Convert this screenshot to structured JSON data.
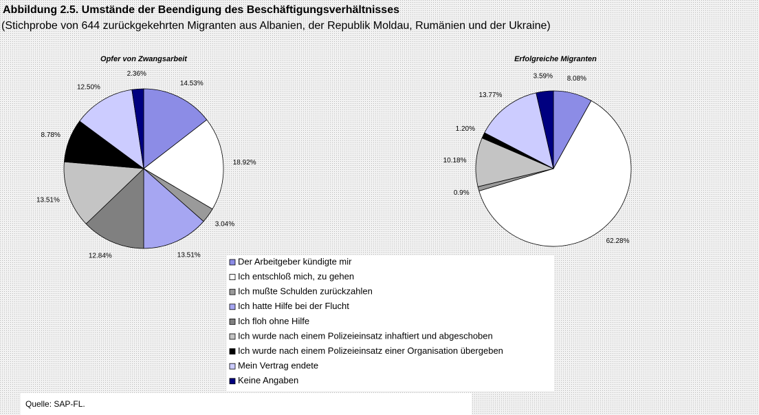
{
  "title": "Abbildung 2.5. Umstände der Beendigung des Beschäftigungsverhältnisses",
  "subtitle": "(Stichprobe von 644 zurückgekehrten Migranten aus Albanien, der Republik Moldau, Rumänien und der Ukraine)",
  "source": "Quelle: SAP-FL.",
  "chart_data": [
    {
      "type": "pie",
      "title": "Opfer von Zwangsarbeit",
      "categories": [
        "Der Arbeitgeber kündigte mir",
        "Ich entschloß mich, zu gehen",
        "Ich mußte Schulden zurückzahlen",
        "Ich hatte Hilfe bei der Flucht",
        "Ich floh ohne Hilfe",
        "Ich wurde nach einem Polizeieinsatz inhaftiert und abgeschoben",
        "Ich wurde nach einem Polizeieinsatz einer Organisation übergeben",
        "Mein Vertrag endete",
        "Keine Angaben"
      ],
      "values": [
        14.53,
        18.92,
        3.04,
        13.51,
        12.84,
        13.51,
        8.78,
        12.5,
        2.36
      ],
      "value_labels": [
        "14.53%",
        "18.92%",
        "3.04%",
        "13.51%",
        "12.84%",
        "13.51%",
        "8.78%",
        "12.50%",
        "2.36%"
      ],
      "colors": [
        "#8c8ce6",
        "#ffffff",
        "#9a9a9a",
        "#a6a6f2",
        "#808080",
        "#c4c4c4",
        "#000000",
        "#ccccff",
        "#000080"
      ],
      "legend": true
    },
    {
      "type": "pie",
      "title": "Erfolgreiche Migranten",
      "categories": [
        "Der Arbeitgeber kündigte mir",
        "Ich entschloß mich, zu gehen",
        "Ich mußte Schulden zurückzahlen",
        "Ich hatte Hilfe bei der Flucht",
        "Ich floh ohne Hilfe",
        "Ich wurde nach einem Polizeieinsatz inhaftiert und abgeschoben",
        "Ich wurde nach einem Polizeieinsatz einer Organisation übergeben",
        "Mein Vertrag endete",
        "Keine Angaben"
      ],
      "values": [
        8.08,
        62.28,
        0.9,
        null,
        null,
        10.18,
        1.2,
        13.77,
        3.59
      ],
      "value_labels": [
        "8.08%",
        "62.28%",
        "0.9%",
        null,
        null,
        "10.18%",
        "1.20%",
        "13.77%",
        "3.59%"
      ],
      "colors": [
        "#8c8ce6",
        "#ffffff",
        "#9a9a9a",
        "#a6a6f2",
        "#808080",
        "#c4c4c4",
        "#000000",
        "#ccccff",
        "#000080"
      ],
      "legend": false
    }
  ]
}
